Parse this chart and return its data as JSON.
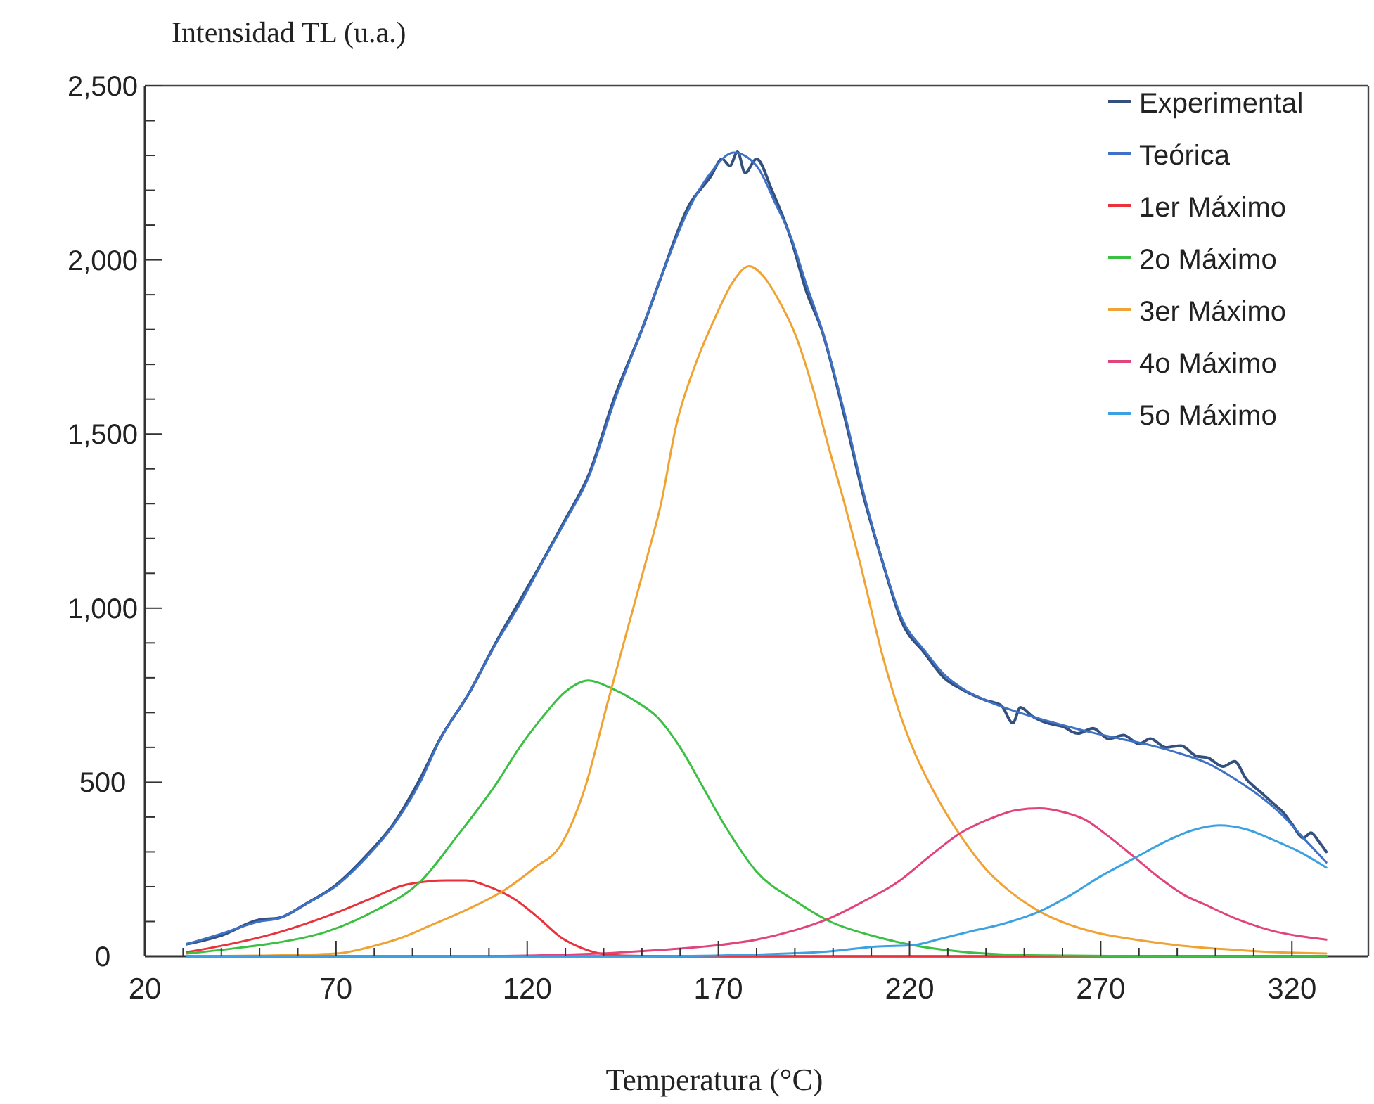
{
  "chart_data": {
    "type": "line",
    "ylabel": "Intensidad TL (u.a.)",
    "xlabel": "Temperatura (°C)",
    "xlim": [
      20,
      340
    ],
    "ylim": [
      0,
      2500
    ],
    "xticks": [
      20,
      {
        "value": 30,
        "label": null
      },
      {
        "value": 40,
        "label": null
      },
      {
        "value": 50,
        "label": null
      },
      {
        "value": 60,
        "label": null
      },
      70,
      {
        "value": 80,
        "label": null
      },
      {
        "value": 90,
        "label": null
      },
      {
        "value": 100,
        "label": null
      },
      {
        "value": 110,
        "label": null
      },
      120,
      {
        "value": 130,
        "label": null
      },
      {
        "value": 140,
        "label": null
      },
      {
        "value": 150,
        "label": null
      },
      {
        "value": 160,
        "label": null
      },
      170,
      {
        "value": 180,
        "label": null
      },
      {
        "value": 190,
        "label": null
      },
      {
        "value": 200,
        "label": null
      },
      {
        "value": 210,
        "label": null
      },
      220,
      {
        "value": 230,
        "label": null
      },
      {
        "value": 240,
        "label": null
      },
      {
        "value": 250,
        "label": null
      },
      {
        "value": 260,
        "label": null
      },
      270,
      {
        "value": 280,
        "label": null
      },
      {
        "value": 290,
        "label": null
      },
      {
        "value": 300,
        "label": null
      },
      {
        "value": 310,
        "label": null
      },
      320
    ],
    "yticks": [
      {
        "value": 0,
        "label": "0"
      },
      {
        "value": 100,
        "label": null
      },
      {
        "value": 200,
        "label": null
      },
      {
        "value": 300,
        "label": null
      },
      {
        "value": 400,
        "label": null
      },
      {
        "value": 500,
        "label": "500"
      },
      {
        "value": 600,
        "label": null
      },
      {
        "value": 700,
        "label": null
      },
      {
        "value": 800,
        "label": null
      },
      {
        "value": 900,
        "label": null
      },
      {
        "value": 1000,
        "label": "1,000"
      },
      {
        "value": 1100,
        "label": null
      },
      {
        "value": 1200,
        "label": null
      },
      {
        "value": 1300,
        "label": null
      },
      {
        "value": 1400,
        "label": null
      },
      {
        "value": 1500,
        "label": "1,500"
      },
      {
        "value": 1600,
        "label": null
      },
      {
        "value": 1700,
        "label": null
      },
      {
        "value": 1800,
        "label": null
      },
      {
        "value": 1900,
        "label": null
      },
      {
        "value": 2000,
        "label": "2,000"
      },
      {
        "value": 2100,
        "label": null
      },
      {
        "value": 2200,
        "label": null
      },
      {
        "value": 2300,
        "label": null
      },
      {
        "value": 2400,
        "label": null
      },
      {
        "value": 2500,
        "label": "2,500"
      }
    ],
    "grid": false,
    "legend": "top right",
    "marker": "none",
    "line_style": "solid",
    "series": [
      {
        "name": "Experimental",
        "color": "#34507c",
        "x": [
          31,
          40,
          50,
          55,
          62,
          70,
          78,
          85,
          92,
          97,
          105,
          112,
          118,
          124,
          130,
          136,
          143,
          150,
          155,
          162,
          168,
          171,
          173,
          175,
          177,
          180,
          184,
          189,
          193,
          197,
          203,
          208,
          213,
          218,
          224,
          229,
          234,
          240,
          244,
          247,
          249,
          252,
          256,
          260,
          264,
          268,
          272,
          276,
          280,
          283,
          287,
          291,
          295,
          298,
          302,
          305,
          308,
          312,
          315,
          318,
          320,
          323,
          325,
          327,
          329
        ],
        "values": [
          35,
          60,
          105,
          110,
          150,
          205,
          290,
          380,
          510,
          620,
          760,
          905,
          1020,
          1135,
          1255,
          1380,
          1610,
          1800,
          1950,
          2150,
          2240,
          2290,
          2270,
          2310,
          2250,
          2290,
          2200,
          2060,
          1910,
          1800,
          1550,
          1320,
          1130,
          960,
          870,
          800,
          765,
          735,
          720,
          670,
          715,
          690,
          670,
          660,
          640,
          655,
          625,
          635,
          610,
          625,
          600,
          605,
          575,
          570,
          545,
          560,
          510,
          470,
          440,
          410,
          380,
          340,
          355,
          330,
          300
        ]
      },
      {
        "name": "Teórica",
        "color": "#3f72c6",
        "x": [
          31,
          40,
          50,
          55,
          62,
          70,
          78,
          85,
          92,
          97,
          105,
          112,
          118,
          124,
          130,
          136,
          143,
          150,
          155,
          162,
          168,
          174,
          180,
          185,
          189,
          193,
          197,
          203,
          208,
          213,
          218,
          224,
          229,
          234,
          240,
          249,
          258,
          266,
          275,
          283,
          290,
          298,
          305,
          312,
          318,
          323,
          329
        ],
        "values": [
          35,
          65,
          100,
          109,
          150,
          202,
          285,
          376,
          500,
          618,
          760,
          901,
          1010,
          1132,
          1250,
          1374,
          1600,
          1800,
          1950,
          2140,
          2250,
          2308,
          2270,
          2160,
          2065,
          1930,
          1803,
          1560,
          1330,
          1132,
          970,
          877,
          810,
          768,
          735,
          699,
          670,
          647,
          625,
          606,
          585,
          554,
          510,
          457,
          400,
          340,
          270
        ]
      },
      {
        "name": "1er Máximo",
        "color": "#e8323c",
        "x": [
          31,
          40,
          55,
          70,
          80,
          87,
          94,
          99,
          104,
          110,
          117,
          123,
          129,
          134,
          139,
          145,
          160,
          200,
          250,
          300,
          329
        ],
        "values": [
          12,
          30,
          69,
          125,
          170,
          202,
          215,
          218,
          218,
          200,
          162,
          110,
          53,
          25,
          8,
          2,
          0,
          0,
          0,
          0,
          0
        ]
      },
      {
        "name": "2o Máximo",
        "color": "#3cc043",
        "x": [
          31,
          45,
          55,
          67,
          80,
          92,
          102,
          112,
          118,
          124,
          130,
          136,
          142,
          148,
          154,
          160,
          166,
          172,
          180,
          190,
          199,
          210,
          221,
          232,
          245,
          260,
          290,
          329
        ],
        "values": [
          8,
          25,
          40,
          69,
          130,
          214,
          350,
          497,
          600,
          687,
          760,
          792,
          770,
          735,
          687,
          600,
          485,
          370,
          243,
          160,
          101,
          60,
          32,
          15,
          5,
          2,
          0,
          0
        ]
      },
      {
        "name": "3er Máximo",
        "color": "#f0a232",
        "x": [
          31,
          50,
          70,
          80,
          87,
          95,
          104,
          114,
          122,
          129,
          135,
          141,
          146,
          151,
          155,
          159,
          164,
          169,
          174,
          178,
          182,
          186,
          190,
          195,
          199,
          203,
          207,
          213,
          218,
          221,
          227,
          233,
          240,
          247,
          254,
          262,
          270,
          279,
          290,
          303,
          315,
          329
        ],
        "values": [
          0,
          2,
          8,
          30,
          53,
          90,
          133,
          190,
          255,
          323,
          480,
          727,
          930,
          1132,
          1300,
          1526,
          1700,
          1831,
          1940,
          1982,
          1950,
          1880,
          1789,
          1620,
          1456,
          1300,
          1132,
          861,
          680,
          594,
          460,
          352,
          250,
          180,
          129,
          90,
          65,
          48,
          32,
          20,
          12,
          8
        ]
      },
      {
        "name": "4o Máximo",
        "color": "#e1437d",
        "x": [
          31,
          100,
          139,
          150,
          160,
          170,
          180,
          190,
          199,
          208,
          217,
          225,
          233,
          241,
          248,
          254,
          260,
          266,
          272,
          279,
          286,
          292,
          297,
          305,
          315,
          322,
          329
        ],
        "values": [
          0,
          0,
          8,
          15,
          22,
          32,
          48,
          75,
          109,
          158,
          214,
          285,
          352,
          395,
          420,
          425,
          415,
          392,
          345,
          283,
          220,
          175,
          150,
          110,
          73,
          58,
          48
        ]
      },
      {
        "name": "5o Máximo",
        "color": "#3ba1e2",
        "x": [
          31,
          150,
          180,
          200,
          211,
          221,
          228,
          235,
          245,
          254,
          262,
          270,
          279,
          287,
          294,
          301,
          308,
          315,
          322,
          329
        ],
        "values": [
          0,
          0,
          5,
          15,
          28,
          32,
          50,
          69,
          95,
          129,
          175,
          230,
          283,
          330,
          362,
          376,
          365,
          335,
          300,
          255
        ]
      }
    ]
  }
}
